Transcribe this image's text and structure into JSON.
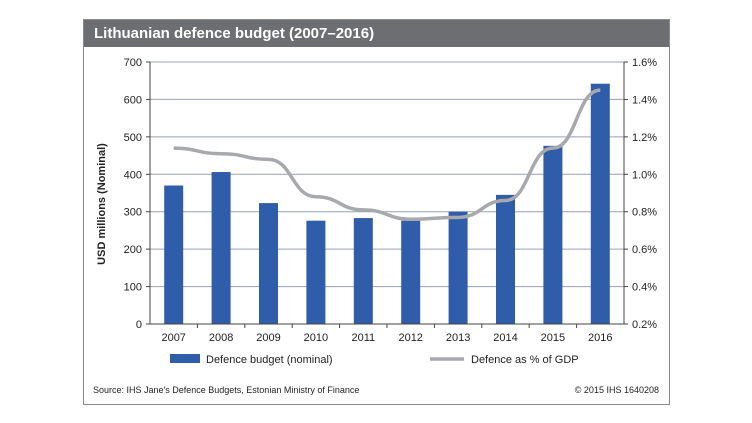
{
  "colors": {
    "bar": "#2f5da9",
    "line": "#a7a9ac",
    "grid": "#9aa0b5",
    "title_bg": "#6d6e71"
  },
  "chart_data": {
    "type": "bar",
    "title": "Lithuanian defence budget (2007–2016)",
    "categories": [
      "2007",
      "2008",
      "2009",
      "2010",
      "2011",
      "2012",
      "2013",
      "2014",
      "2015",
      "2016"
    ],
    "series": [
      {
        "name": "Defence budget (nominal)",
        "type": "bar",
        "axis": "left",
        "values": [
          370,
          406,
          323,
          276,
          283,
          276,
          300,
          345,
          476,
          642
        ]
      },
      {
        "name": "Defence as % of GDP",
        "type": "line",
        "axis": "right",
        "values": [
          1.14,
          1.11,
          1.08,
          0.88,
          0.81,
          0.76,
          0.77,
          0.86,
          1.14,
          1.45
        ]
      }
    ],
    "ylabel": "USD millions (Nominal)",
    "ylim": [
      0,
      700
    ],
    "y_ticks": [
      "0",
      "100",
      "200",
      "300",
      "400",
      "500",
      "600",
      "700"
    ],
    "y2lim": [
      0.2,
      1.6
    ],
    "y2_ticks": [
      "0.2%",
      "0.4%",
      "0.6%",
      "0.8%",
      "1.0%",
      "1.2%",
      "1.4%",
      "1.6%"
    ],
    "grid": true,
    "legend_position": "bottom"
  },
  "footer": {
    "source": "Source: IHS Jane's Defence Budgets, Estonian Ministry of Finance",
    "credit": "© 2015 IHS   1640208"
  }
}
